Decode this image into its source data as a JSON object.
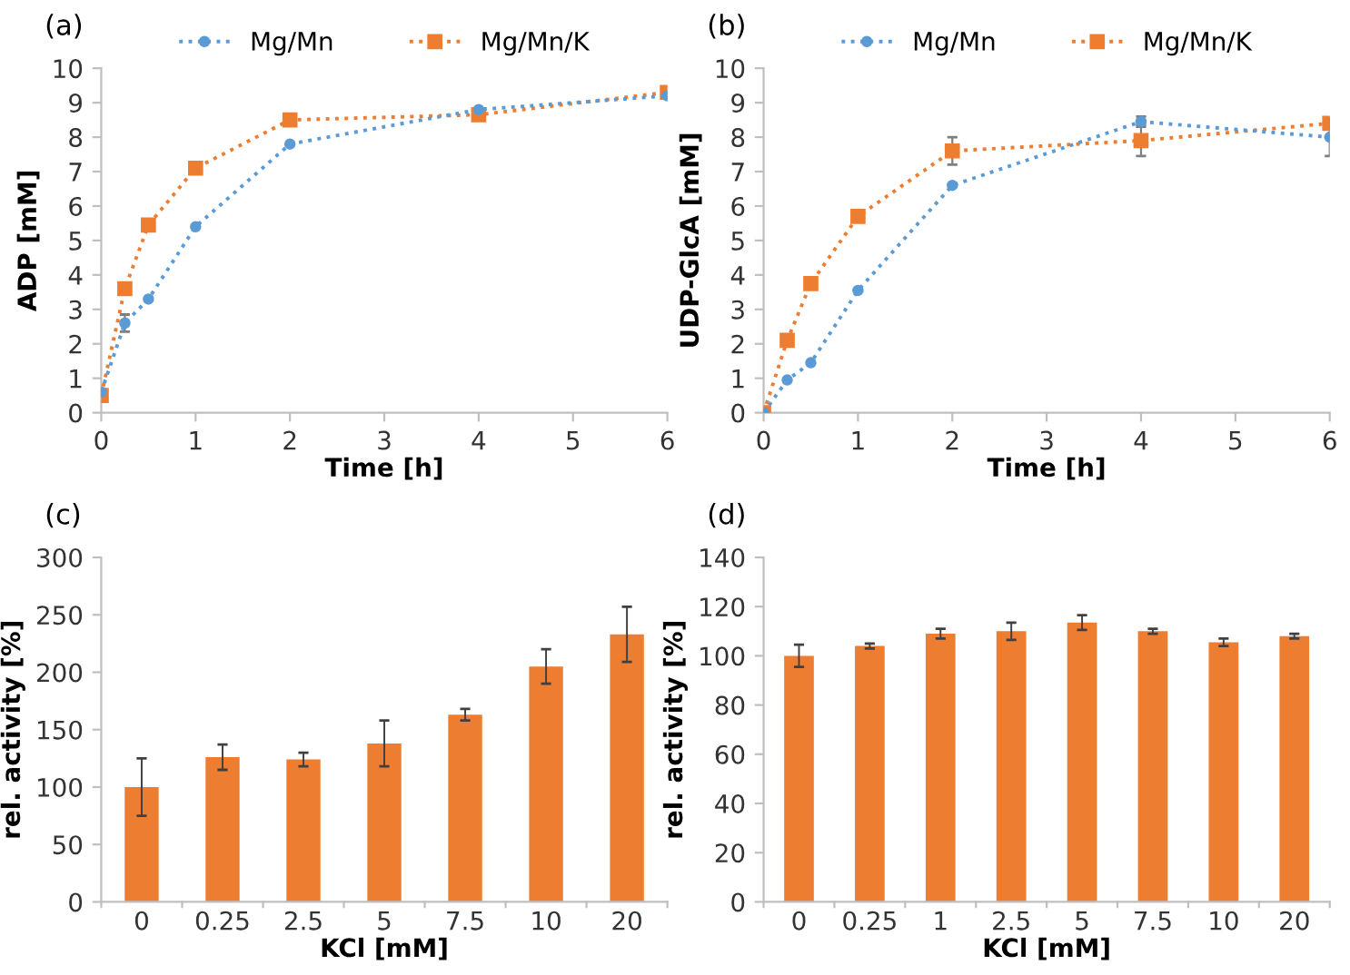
{
  "chart_data": [
    {
      "type": "line",
      "title": "(a)",
      "xlabel": "Time [h]",
      "ylabel": "ADP [mM]",
      "xlim": [
        0,
        6
      ],
      "xticks": [
        0,
        1,
        2,
        3,
        4,
        5,
        6
      ],
      "ylim": [
        0,
        10
      ],
      "yticks": [
        0,
        1,
        2,
        3,
        4,
        5,
        6,
        7,
        8,
        9,
        10
      ],
      "legend": "top",
      "line_style": "dotted",
      "grid": false,
      "x": [
        0,
        0.25,
        0.5,
        1,
        2,
        4,
        6
      ],
      "series": [
        {
          "name": "Mg/Mn",
          "color": "#5b9bd5",
          "marker": "circle",
          "values": [
            0.6,
            2.6,
            3.3,
            5.4,
            7.8,
            8.8,
            9.2
          ],
          "errors": [
            null,
            0.25,
            null,
            null,
            null,
            null,
            null
          ]
        },
        {
          "name": "Mg/Mn/K",
          "color": "#ed7d31",
          "marker": "square",
          "values": [
            0.5,
            3.6,
            5.45,
            7.1,
            8.5,
            8.65,
            9.3
          ]
        }
      ]
    },
    {
      "type": "line",
      "title": "(b)",
      "xlabel": "Time [h]",
      "ylabel": "UDP-GlcA [mM]",
      "xlim": [
        0,
        6
      ],
      "xticks": [
        0,
        1,
        2,
        3,
        4,
        5,
        6
      ],
      "ylim": [
        0,
        10
      ],
      "yticks": [
        0,
        1,
        2,
        3,
        4,
        5,
        6,
        7,
        8,
        9,
        10
      ],
      "legend": "top",
      "line_style": "dotted",
      "grid": false,
      "x": [
        0,
        0.25,
        0.5,
        1,
        2,
        4,
        6
      ],
      "series": [
        {
          "name": "Mg/Mn",
          "color": "#5b9bd5",
          "marker": "circle",
          "values": [
            0,
            0.95,
            1.45,
            3.55,
            6.6,
            8.45,
            8.0
          ],
          "errors": [
            null,
            null,
            null,
            null,
            null,
            0.15,
            0.55
          ]
        },
        {
          "name": "Mg/Mn/K",
          "color": "#ed7d31",
          "marker": "square",
          "values": [
            0,
            2.1,
            3.75,
            5.7,
            7.6,
            7.9,
            8.4
          ],
          "errors": [
            null,
            null,
            null,
            null,
            0.4,
            0.45,
            0.15
          ]
        }
      ]
    },
    {
      "type": "bar",
      "title": "(c)",
      "xlabel": "KCl [mM]",
      "ylabel": "rel. activity [%]",
      "categories": [
        "0",
        "0.25",
        "2.5",
        "5",
        "7.5",
        "10",
        "20"
      ],
      "ylim": [
        0,
        300
      ],
      "yticks": [
        0,
        50,
        100,
        150,
        200,
        250,
        300
      ],
      "grid": false,
      "series": [
        {
          "color": "#ed7d31",
          "values": [
            100,
            126,
            124,
            138,
            163,
            205,
            233
          ],
          "errors": [
            25,
            11,
            6,
            20,
            5,
            15,
            24
          ]
        }
      ]
    },
    {
      "type": "bar",
      "title": "(d)",
      "xlabel": "KCl [mM]",
      "ylabel": "rel. activity [%]",
      "categories": [
        "0",
        "0.25",
        "1",
        "2.5",
        "5",
        "7.5",
        "10",
        "20"
      ],
      "ylim": [
        0,
        140
      ],
      "yticks": [
        0,
        20,
        40,
        60,
        80,
        100,
        120,
        140
      ],
      "grid": false,
      "series": [
        {
          "color": "#ed7d31",
          "values": [
            100,
            104,
            109,
            110,
            113.5,
            110,
            105.5,
            108
          ],
          "errors": [
            4.5,
            1,
            2,
            3.5,
            3,
            1,
            1.5,
            1
          ]
        }
      ]
    }
  ]
}
